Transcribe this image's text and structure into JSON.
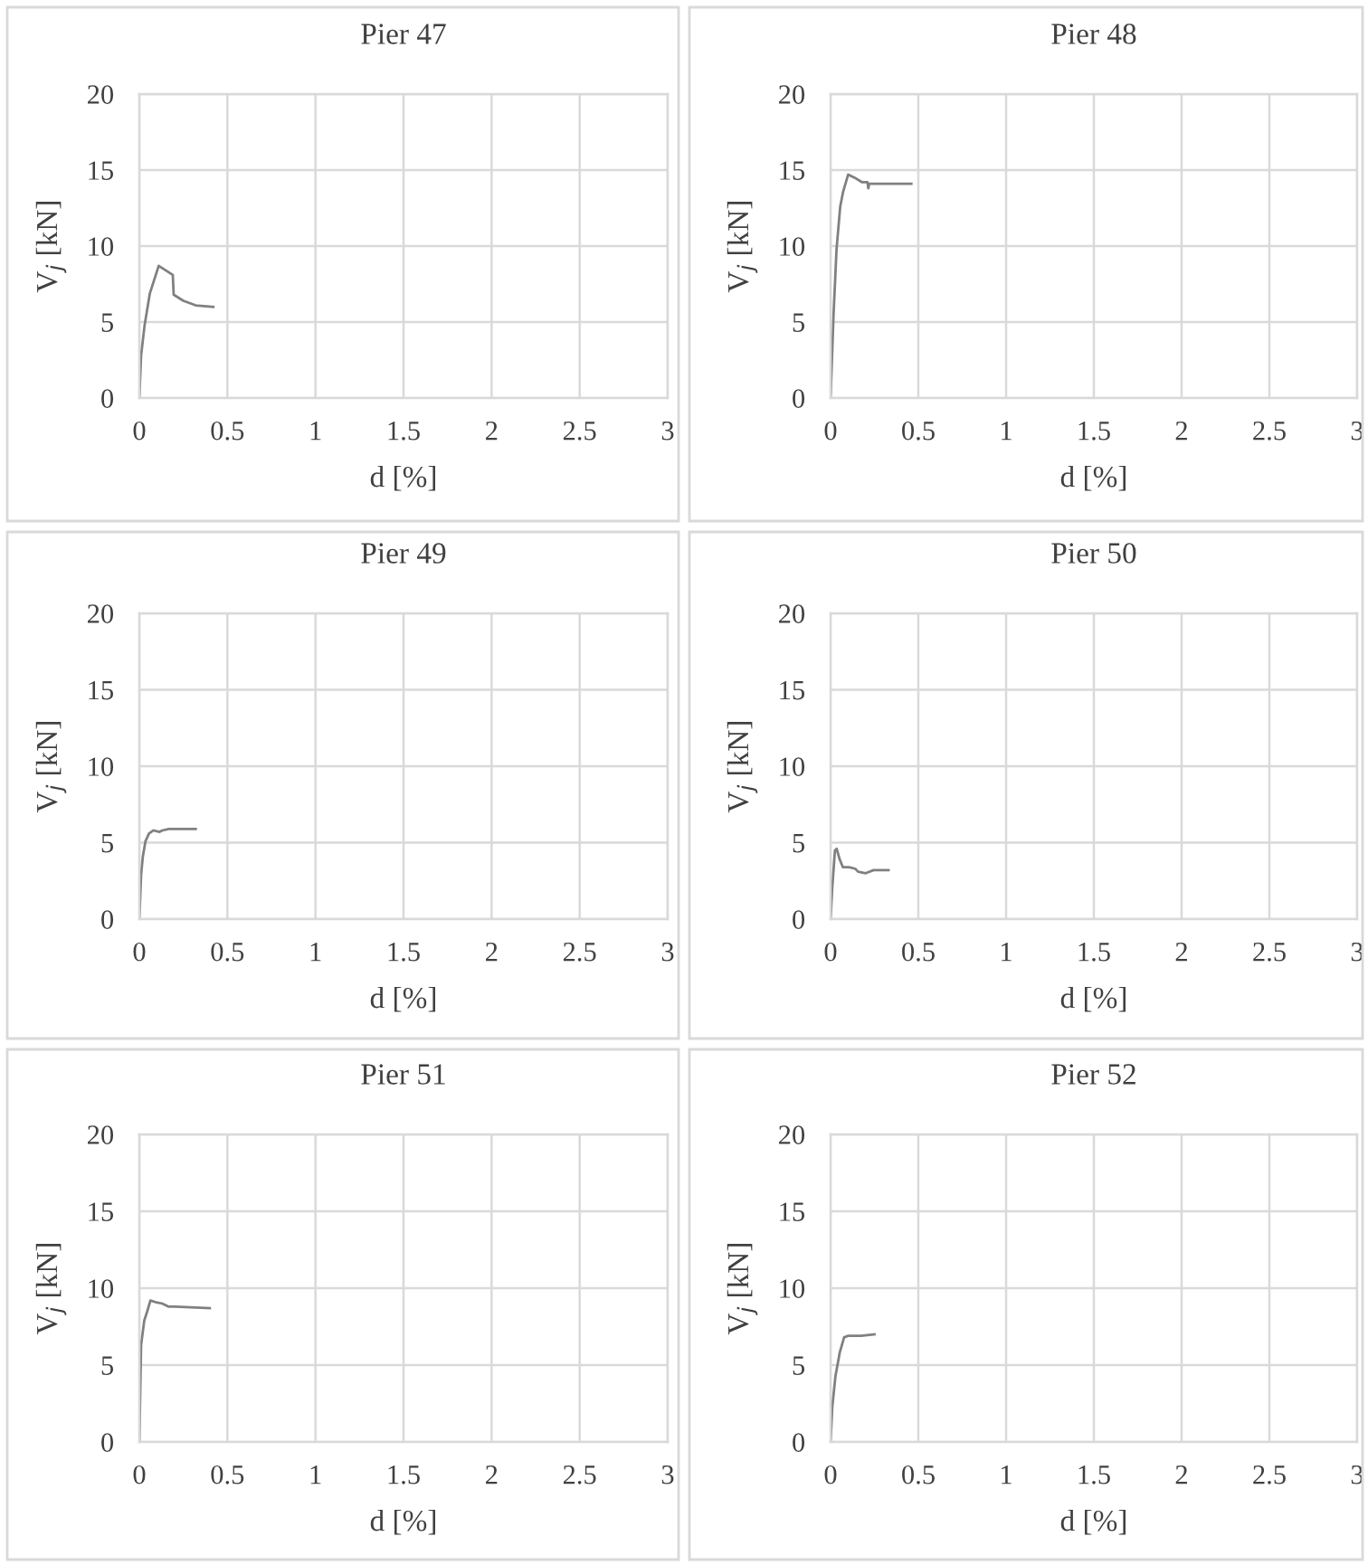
{
  "chart_data": [
    {
      "type": "line",
      "title": "Pier 47",
      "xlabel": "d [%]",
      "ylabel": "V$_{j}$ [kN]",
      "xlim": [
        0,
        3
      ],
      "xticks": [
        0,
        0.5,
        1,
        1.5,
        2,
        2.5,
        3
      ],
      "ylim": [
        0,
        20
      ],
      "yticks": [
        0,
        5,
        10,
        15,
        20
      ],
      "grid": true,
      "series": [
        {
          "color": "#808080",
          "x": [
            0,
            0.01,
            0.03,
            0.06,
            0.11,
            0.15,
            0.19,
            0.195,
            0.25,
            0.32,
            0.42
          ],
          "values": [
            0,
            2.8,
            4.8,
            6.9,
            8.7,
            8.4,
            8.1,
            6.8,
            6.4,
            6.1,
            6.0
          ]
        }
      ]
    },
    {
      "type": "line",
      "title": "Pier 48",
      "xlabel": "d [%]",
      "ylabel": "V$_{j}$ [kN]",
      "xlim": [
        0,
        3
      ],
      "xticks": [
        0,
        0.5,
        1,
        1.5,
        2,
        2.5,
        3
      ],
      "ylim": [
        0,
        20
      ],
      "yticks": [
        0,
        5,
        10,
        15,
        20
      ],
      "grid": true,
      "series": [
        {
          "color": "#808080",
          "x": [
            0,
            0.017,
            0.034,
            0.055,
            0.072,
            0.1,
            0.137,
            0.18,
            0.21,
            0.215,
            0.22,
            0.46
          ],
          "values": [
            0,
            5.5,
            9.8,
            12.6,
            13.6,
            14.7,
            14.5,
            14.2,
            14.2,
            13.8,
            14.1,
            14.1
          ]
        }
      ]
    },
    {
      "type": "line",
      "title": "Pier 49",
      "xlabel": "d [%]",
      "ylabel": "V$_{j}$ [kN]",
      "xlim": [
        0,
        3
      ],
      "xticks": [
        0,
        0.5,
        1,
        1.5,
        2,
        2.5,
        3
      ],
      "ylim": [
        0,
        20
      ],
      "yticks": [
        0,
        5,
        10,
        15,
        20
      ],
      "grid": true,
      "series": [
        {
          "color": "#808080",
          "x": [
            0,
            0.01,
            0.02,
            0.035,
            0.055,
            0.08,
            0.115,
            0.13,
            0.167,
            0.32
          ],
          "values": [
            0,
            2.9,
            4.1,
            5.1,
            5.6,
            5.8,
            5.7,
            5.8,
            5.9,
            5.9
          ]
        }
      ]
    },
    {
      "type": "line",
      "title": "Pier 50",
      "xlabel": "d [%]",
      "ylabel": "V$_{j}$ [kN]",
      "xlim": [
        0,
        3
      ],
      "xticks": [
        0,
        0.5,
        1,
        1.5,
        2,
        2.5,
        3
      ],
      "ylim": [
        0,
        20
      ],
      "yticks": [
        0,
        5,
        10,
        15,
        20
      ],
      "grid": true,
      "series": [
        {
          "color": "#808080",
          "x": [
            0,
            0.01,
            0.025,
            0.035,
            0.052,
            0.07,
            0.105,
            0.14,
            0.157,
            0.2,
            0.245,
            0.33
          ],
          "values": [
            0,
            2.1,
            4.5,
            4.6,
            3.9,
            3.4,
            3.4,
            3.3,
            3.1,
            3.0,
            3.2,
            3.2
          ]
        }
      ]
    },
    {
      "type": "line",
      "title": "Pier 51",
      "xlabel": "d [%]",
      "ylabel": "V$_{j}$ [kN]",
      "xlim": [
        0,
        3
      ],
      "xticks": [
        0,
        0.5,
        1,
        1.5,
        2,
        2.5,
        3
      ],
      "ylim": [
        0,
        20
      ],
      "yticks": [
        0,
        5,
        10,
        15,
        20
      ],
      "grid": true,
      "series": [
        {
          "color": "#808080",
          "x": [
            0,
            0.01,
            0.028,
            0.045,
            0.063,
            0.09,
            0.13,
            0.167,
            0.2,
            0.4
          ],
          "values": [
            0,
            6.3,
            7.9,
            8.5,
            9.2,
            9.1,
            9.0,
            8.8,
            8.8,
            8.7
          ]
        }
      ]
    },
    {
      "type": "line",
      "title": "Pier 52",
      "xlabel": "d [%]",
      "ylabel": "V$_{j}$ [kN]",
      "xlim": [
        0,
        3
      ],
      "xticks": [
        0,
        0.5,
        1,
        1.5,
        2,
        2.5,
        3
      ],
      "ylim": [
        0,
        20
      ],
      "yticks": [
        0,
        5,
        10,
        15,
        20
      ],
      "grid": true,
      "series": [
        {
          "color": "#808080",
          "x": [
            0,
            0.01,
            0.028,
            0.052,
            0.077,
            0.098,
            0.175,
            0.25
          ],
          "values": [
            0,
            2.3,
            4.3,
            5.8,
            6.8,
            6.9,
            6.9,
            7.0
          ]
        }
      ]
    }
  ]
}
